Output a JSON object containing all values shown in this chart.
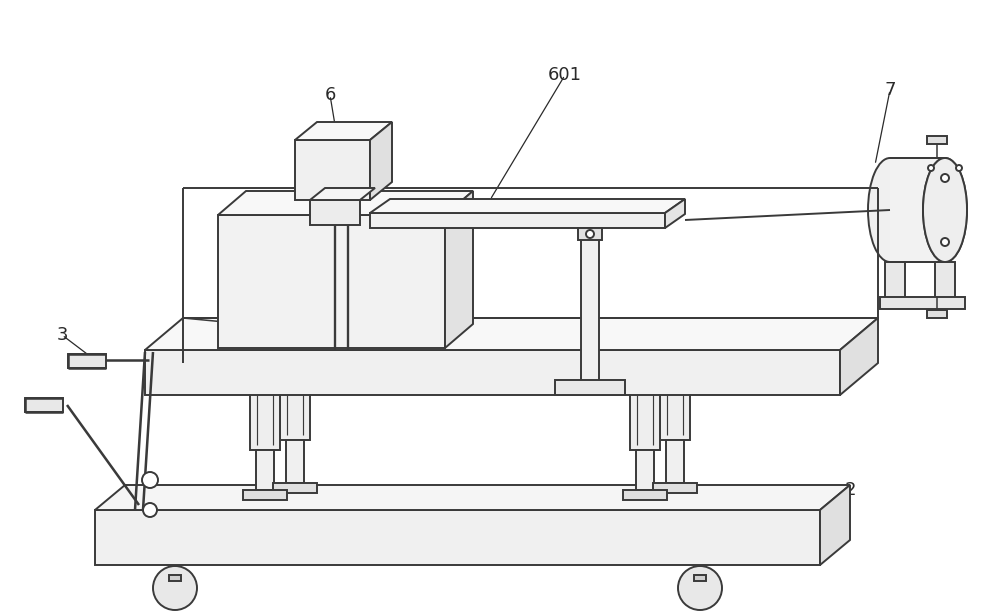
{
  "background_color": "#ffffff",
  "line_color": "#3a3a3a",
  "line_width": 1.4,
  "figure_width": 10.0,
  "figure_height": 6.12,
  "dpi": 100,
  "label_fontsize": 13,
  "label_color": "#2a2a2a"
}
